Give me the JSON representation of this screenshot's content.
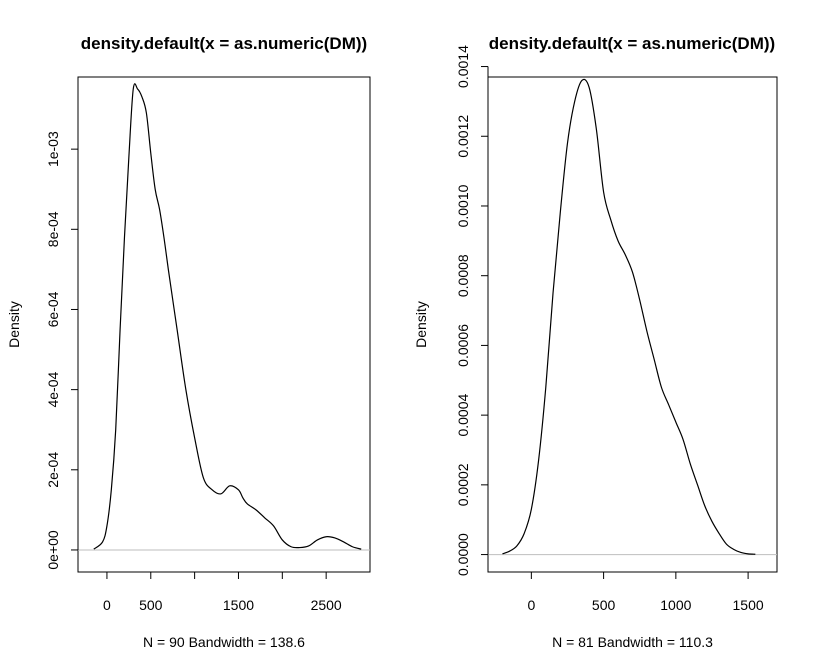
{
  "chart_data": [
    {
      "type": "line",
      "title": "density.default(x = as.numeric(DM))",
      "ylabel": "Density",
      "xlabel": "N = 90   Bandwidth = 138.6",
      "xlim": [
        -330,
        3000
      ],
      "ylim": [
        -5.5e-05,
        0.00118
      ],
      "xticks": [
        0,
        500,
        1000,
        1500,
        2000,
        2500
      ],
      "xtick_labels": [
        "0",
        "500",
        "",
        "1500",
        "",
        "2500"
      ],
      "yticks": [
        0,
        0.0002,
        0.0004,
        0.0006,
        0.0008,
        0.001
      ],
      "ytick_labels": [
        "0e+00",
        "2e-04",
        "4e-04",
        "6e-04",
        "8e-04",
        "1e-03"
      ],
      "baseline": 0,
      "series": [
        {
          "x": [
            -150,
            -50,
            0,
            50,
            100,
            150,
            200,
            250,
            300,
            350,
            400,
            450,
            500,
            550,
            600,
            650,
            700,
            800,
            900,
            1000,
            1100,
            1200,
            1300,
            1400,
            1500,
            1550,
            1600,
            1700,
            1800,
            1900,
            2000,
            2100,
            2200,
            2300,
            2400,
            2500,
            2600,
            2700,
            2800,
            2900
          ],
          "y": [
            2e-06,
            2e-05,
            6e-05,
            0.00015,
            0.0003,
            0.00055,
            0.00078,
            0.00098,
            0.00115,
            0.00115,
            0.00113,
            0.00109,
            0.00099,
            0.0009,
            0.00085,
            0.00078,
            0.0007,
            0.00055,
            0.0004,
            0.00028,
            0.00018,
            0.00015,
            0.00014,
            0.00016,
            0.00015,
            0.00013,
            0.000115,
            0.0001,
            8e-05,
            6e-05,
            2.5e-05,
            8e-06,
            6e-06,
            1e-05,
            2.5e-05,
            3.3e-05,
            3e-05,
            2e-05,
            8e-06,
            2e-06
          ]
        }
      ]
    },
    {
      "type": "line",
      "title": "density.default(x = as.numeric(DM))",
      "ylabel": "Density",
      "xlabel": "N = 81   Bandwidth = 110.3",
      "xlim": [
        -300,
        1700
      ],
      "ylim": [
        -5e-05,
        0.00137
      ],
      "xticks": [
        0,
        500,
        1000,
        1500
      ],
      "xtick_labels": [
        "0",
        "500",
        "1000",
        "1500"
      ],
      "yticks": [
        0,
        0.0002,
        0.0004,
        0.0006,
        0.0008,
        0.001,
        0.0012,
        0.0014
      ],
      "ytick_labels": [
        "0.0000",
        "0.0002",
        "0.0004",
        "0.0006",
        "0.0008",
        "0.0010",
        "0.0012",
        "0.0014"
      ],
      "baseline": 0,
      "series": [
        {
          "x": [
            -200,
            -150,
            -100,
            -50,
            0,
            50,
            100,
            150,
            200,
            250,
            300,
            350,
            400,
            450,
            500,
            550,
            600,
            650,
            700,
            750,
            800,
            850,
            900,
            950,
            1000,
            1050,
            1100,
            1150,
            1200,
            1250,
            1300,
            1350,
            1400,
            1450,
            1500,
            1550
          ],
          "y": [
            2e-06,
            1e-05,
            2.5e-05,
            6e-05,
            0.00013,
            0.00027,
            0.00048,
            0.00075,
            0.00098,
            0.00118,
            0.0013,
            0.00136,
            0.00134,
            0.00122,
            0.00104,
            0.00096,
            0.0009,
            0.00086,
            0.00081,
            0.00073,
            0.00064,
            0.00056,
            0.00048,
            0.00043,
            0.00038,
            0.00033,
            0.00026,
            0.0002,
            0.00014,
            9.5e-05,
            6e-05,
            3e-05,
            1.5e-05,
            6e-06,
            2e-06,
            1e-06
          ]
        }
      ]
    }
  ]
}
